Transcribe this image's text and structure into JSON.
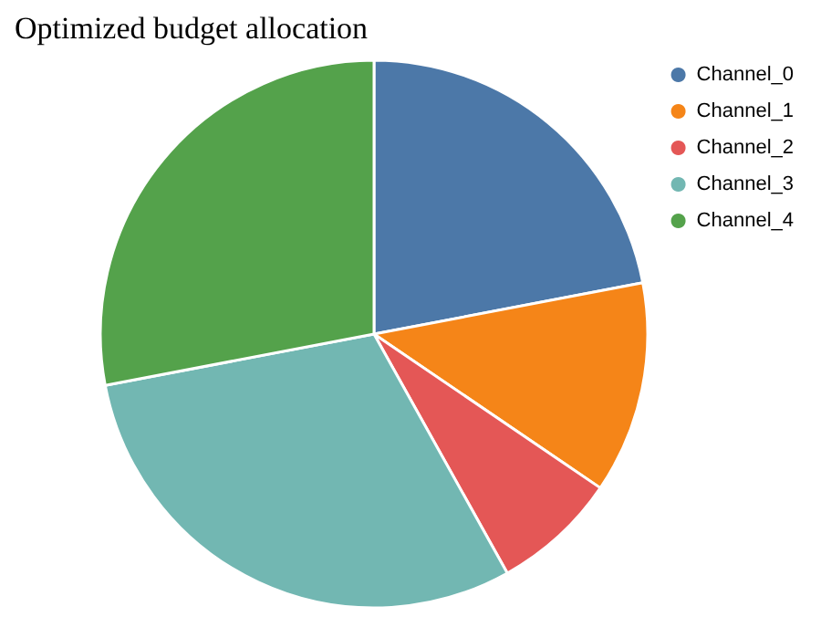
{
  "chart_data": {
    "type": "pie",
    "title": "Optimized budget allocation",
    "categories": [
      "Channel_0",
      "Channel_1",
      "Channel_2",
      "Channel_3",
      "Channel_4"
    ],
    "values": [
      22,
      12.5,
      7.4,
      30.1,
      28
    ],
    "colors": [
      "#4c78a8",
      "#f58518",
      "#e45756",
      "#72b7b2",
      "#54a24b"
    ],
    "legend": "top right"
  }
}
